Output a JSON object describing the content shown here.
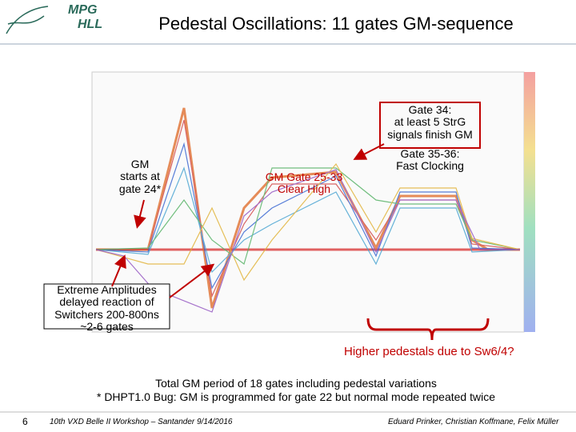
{
  "header": {
    "logo": [
      "MPG",
      "HLL"
    ],
    "title": "Pedestal Oscillations: 11 gates GM-sequence"
  },
  "annotations": {
    "gm_start": [
      "GM",
      "starts at",
      "gate 24*"
    ],
    "clear_high": [
      "GM Gate 25-33",
      "Clear High"
    ],
    "gate34": [
      "Gate 34:",
      "at least 5 StrG",
      "signals finish GM"
    ],
    "gate35": [
      "Gate 35-36:",
      "Fast Clocking"
    ],
    "extreme": [
      "Extreme Amplitudes",
      "delayed reaction of",
      "Switchers 200-800ns",
      "~2-6 gates"
    ],
    "higher": "Higher pedestals due to Sw6/4?"
  },
  "body": [
    "Total GM period of 18 gates including pedestal variations",
    "* DHPT1.0 Bug: GM is programmed for gate 22 but normal mode repeated twice"
  ],
  "footer": {
    "page": "6",
    "event": "10th VXD Belle II Workshop – Santander 9/14/2016",
    "authors": "Eduard Prinker, Christian Koffmane, Felix Müller"
  }
}
